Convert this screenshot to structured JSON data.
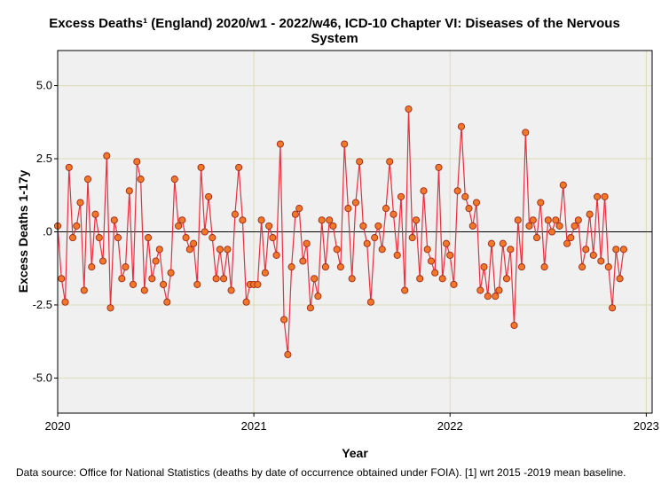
{
  "chart_data": {
    "type": "line",
    "title_lines": [
      "Excess Deaths¹ (England) 2020/w1 - 2022/w46, ICD-10 Chapter VI: Diseases of the Nervous",
      "System"
    ],
    "xlabel": "Year",
    "ylabel": "Excess Deaths 1-17y",
    "xlim": [
      2020,
      2023.03
    ],
    "ylim": [
      -6.2,
      6.2
    ],
    "x_ticks": [
      2020,
      2021,
      2022,
      2023
    ],
    "x_tick_labels": [
      "2020",
      "2021",
      "2022",
      "2023"
    ],
    "y_ticks": [
      5,
      2.5,
      0,
      -2.5,
      -5
    ],
    "y_tick_labels": [
      "5.0",
      "2.5",
      ".0",
      "-2.5",
      "-5.0"
    ],
    "grid": true,
    "reference_line_y": 0,
    "x_start": 2020.0,
    "x_step_weeks": 52,
    "values": [
      0.2,
      -1.6,
      -2.4,
      2.2,
      -0.2,
      0.2,
      1,
      -2,
      1.8,
      -1.2,
      0.6,
      -0.2,
      -1,
      2.6,
      -2.6,
      0.4,
      -0.2,
      -1.6,
      -1.2,
      1.4,
      -1.8,
      2.4,
      1.8,
      -2,
      -0.2,
      -1.6,
      -1,
      -0.6,
      -1.8,
      -2.4,
      -1.4,
      1.8,
      0.2,
      0.4,
      -0.2,
      -0.6,
      -0.4,
      -1.8,
      2.2,
      0,
      1.2,
      -0.2,
      -1.6,
      -0.6,
      -1.6,
      -0.6,
      -2,
      0.6,
      2.2,
      0.4,
      -2.4,
      -1.8,
      -1.8,
      -1.8,
      0.4,
      -1.4,
      0.2,
      -0.2,
      -0.8,
      3,
      -3,
      -4.2,
      -1.2,
      0.6,
      0.8,
      -1,
      -0.4,
      -2.6,
      -1.6,
      -2.2,
      0.4,
      -1.2,
      0.4,
      0.2,
      -0.6,
      -1.2,
      3,
      0.8,
      -1.6,
      1,
      2.4,
      0.2,
      -0.4,
      -2.4,
      -0.2,
      0.2,
      -0.6,
      0.8,
      2.4,
      0.6,
      -0.8,
      1.2,
      -2,
      4.2,
      -0.2,
      0.4,
      -1.6,
      1.4,
      -0.6,
      -1,
      -1.4,
      2.2,
      -1.6,
      -0.4,
      -0.8,
      -1.8,
      1.4,
      3.6,
      1.2,
      0.8,
      0.2,
      1,
      -2,
      -1.2,
      -2.2,
      -0.4,
      -2.2,
      -2,
      -0.4,
      -1.6,
      -0.6,
      -3.2,
      0.4,
      -1.2,
      3.4,
      0.2,
      0.4,
      -0.2,
      1,
      -1.2,
      0.4,
      0,
      0.4,
      0.2,
      1.6,
      -0.4,
      -0.2,
      0.2,
      0.4,
      -1.2,
      -0.6,
      0.6,
      -0.8,
      1.2,
      -1,
      1.2,
      -1.2,
      -2.6,
      -0.6,
      -1.6,
      -0.6
    ],
    "colors": {
      "plot_bg": "#f0f0f0",
      "grid": "#dcdcb4",
      "line": "#e8303c",
      "marker_fill": "#f07828",
      "marker_edge": "#a02818",
      "zero_line": "#000000"
    }
  },
  "footnote": "Data source: Office for National Statistics (deaths by date of occurrence obtained under FOIA). [1] wrt 2015 -2019 mean baseline."
}
